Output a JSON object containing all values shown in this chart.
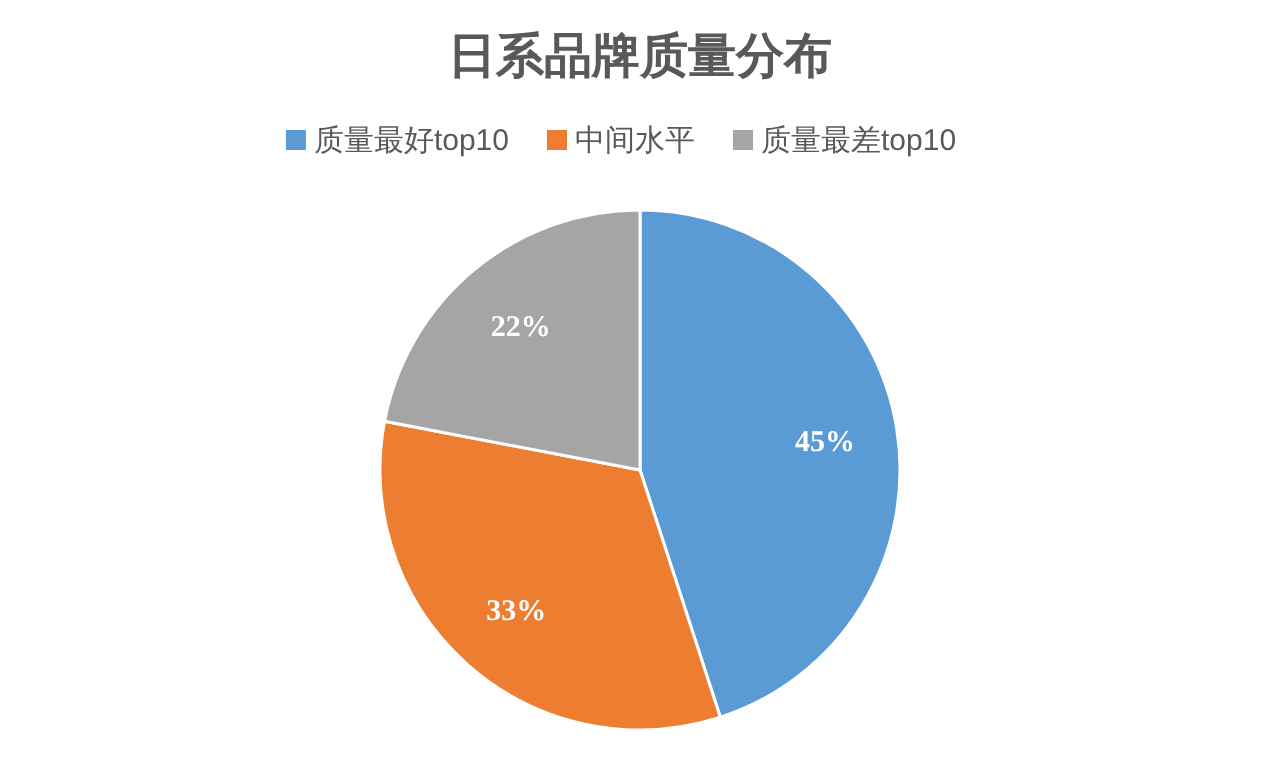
{
  "chart_data": {
    "type": "pie",
    "title": "日系品牌质量分布",
    "categories": [
      "质量最好top10",
      "中间水平",
      "质量最差top10"
    ],
    "values": [
      45,
      33,
      22
    ],
    "colors": [
      "#5b9bd5",
      "#ed7d31",
      "#a5a5a5"
    ],
    "value_labels": [
      "45%",
      "33%",
      "22%"
    ],
    "legend": "top"
  }
}
